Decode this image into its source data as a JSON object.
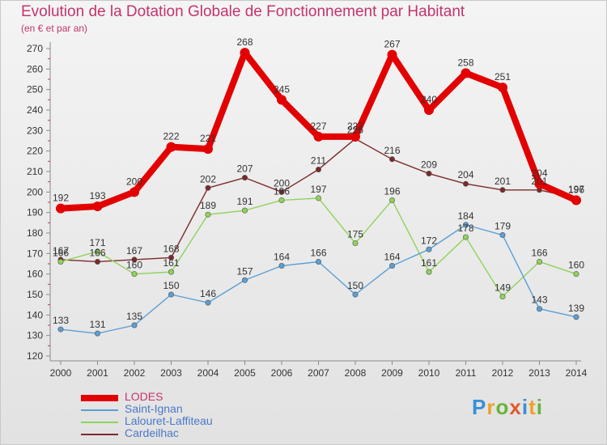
{
  "title": "Evolution de la Dotation Globale de Fonctionnement par Habitant",
  "subtitle": "(en € et par an)",
  "logo": {
    "text": "Proxiti",
    "colors": [
      "#3a8fd8",
      "#f0a12a",
      "#6ab33b",
      "#e05a2c",
      "#3a8fd8",
      "#f0a12a",
      "#6ab33b"
    ]
  },
  "chart_data": {
    "type": "line",
    "x": [
      "2000",
      "2001",
      "2002",
      "2003",
      "2004",
      "2005",
      "2006",
      "2007",
      "2008",
      "2009",
      "2010",
      "2011",
      "2012",
      "2013",
      "2014"
    ],
    "ylim": [
      120,
      270
    ],
    "yticks": [
      120,
      130,
      140,
      150,
      160,
      170,
      180,
      190,
      200,
      210,
      220,
      230,
      240,
      250,
      260,
      270
    ],
    "grid": false,
    "legend_position": "bottom-left",
    "series": [
      {
        "name": "LODES",
        "color": "#e30000",
        "values": [
          192,
          193,
          200,
          222,
          221,
          268,
          245,
          227,
          227,
          267,
          240,
          258,
          251,
          204,
          196
        ]
      },
      {
        "name": "Saint-Ignan",
        "color": "#5b9fd4",
        "values": [
          133,
          131,
          135,
          150,
          146,
          157,
          164,
          166,
          150,
          164,
          172,
          184,
          179,
          143,
          139
        ]
      },
      {
        "name": "Lalouret-Laffiteau",
        "color": "#8fd35a",
        "values": [
          166,
          171,
          160,
          161,
          189,
          191,
          196,
          197,
          175,
          196,
          161,
          178,
          149,
          166,
          160
        ]
      },
      {
        "name": "Cardeilhac",
        "color": "#7b2a2a",
        "values": [
          167,
          166,
          167,
          168,
          202,
          207,
          200,
          211,
          226,
          216,
          209,
          204,
          201,
          201,
          197
        ]
      }
    ]
  }
}
